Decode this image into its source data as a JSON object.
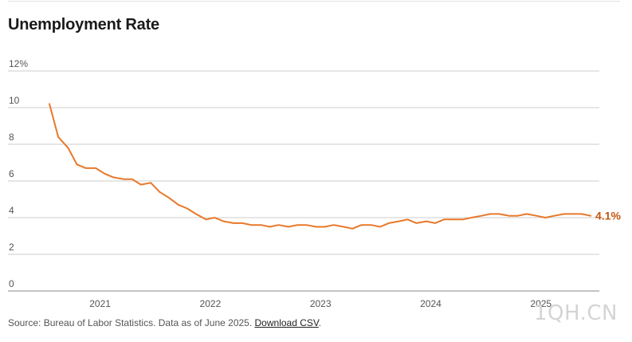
{
  "title": "Unemployment Rate",
  "footer": {
    "source_text": "Source: Bureau of Labor Statistics. Data as of June 2025. ",
    "link_text": "Download CSV",
    "period": "."
  },
  "watermark": "1QH.CN",
  "colors": {
    "line": "#E8782A",
    "grid": "#cccccc",
    "axis": "#555555",
    "end_label": "#C2560F"
  },
  "chart_data": {
    "type": "line",
    "title": "Unemployment Rate",
    "xlabel": "",
    "ylabel": "",
    "unit": "%",
    "ylim": [
      0,
      12
    ],
    "yticks": [
      0,
      2,
      4,
      6,
      8,
      10,
      12
    ],
    "ytick_labels": [
      "0",
      "2",
      "4",
      "6",
      "8",
      "10",
      "12%"
    ],
    "xlim": [
      2020.54,
      2025.45
    ],
    "xticks": [
      2021,
      2022,
      2023,
      2024,
      2025
    ],
    "xtick_labels": [
      "2021",
      "2022",
      "2023",
      "2024",
      "2025"
    ],
    "grid": true,
    "end_label": "4.1%",
    "series": [
      {
        "x": [
          2020.54,
          2020.62,
          2020.71,
          2020.79,
          2020.87,
          2020.96,
          2021.04,
          2021.12,
          2021.21,
          2021.29,
          2021.37,
          2021.46,
          2021.54,
          2021.62,
          2021.71,
          2021.79,
          2021.87,
          2021.96,
          2022.04,
          2022.12,
          2022.21,
          2022.29,
          2022.37,
          2022.46,
          2022.54,
          2022.62,
          2022.71,
          2022.79,
          2022.87,
          2022.96,
          2023.04,
          2023.12,
          2023.21,
          2023.29,
          2023.37,
          2023.46,
          2023.54,
          2023.62,
          2023.71,
          2023.79,
          2023.87,
          2023.96,
          2024.04,
          2024.12,
          2024.21,
          2024.29,
          2024.37,
          2024.46,
          2024.54,
          2024.62,
          2024.71,
          2024.79,
          2024.87,
          2024.96,
          2025.04,
          2025.12,
          2025.21,
          2025.29,
          2025.37,
          2025.45
        ],
        "values": [
          10.2,
          8.4,
          7.8,
          6.9,
          6.7,
          6.7,
          6.4,
          6.2,
          6.1,
          6.1,
          5.8,
          5.9,
          5.4,
          5.1,
          4.7,
          4.5,
          4.2,
          3.9,
          4.0,
          3.8,
          3.7,
          3.7,
          3.6,
          3.6,
          3.5,
          3.6,
          3.5,
          3.6,
          3.6,
          3.5,
          3.5,
          3.6,
          3.5,
          3.4,
          3.6,
          3.6,
          3.5,
          3.7,
          3.8,
          3.9,
          3.7,
          3.8,
          3.7,
          3.9,
          3.9,
          3.9,
          4.0,
          4.1,
          4.2,
          4.2,
          4.1,
          4.1,
          4.2,
          4.1,
          4.0,
          4.1,
          4.2,
          4.2,
          4.2,
          4.1
        ]
      }
    ]
  }
}
